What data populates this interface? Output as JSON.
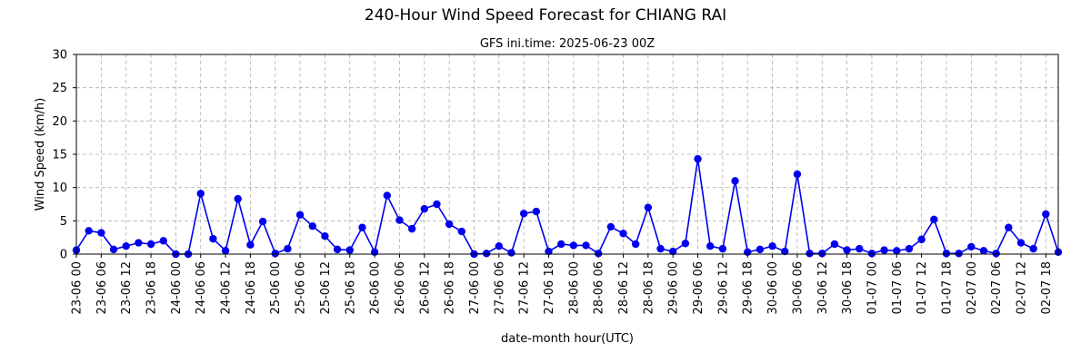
{
  "chart_data": {
    "type": "line",
    "title": "240-Hour Wind Speed Forecast for CHIANG RAI",
    "subtitle": "GFS ini.time: 2025-06-23 00Z",
    "xlabel": "date-month hour(UTC)",
    "ylabel": "Wind Speed (km/h)",
    "ylim": [
      0,
      30
    ],
    "yticks": [
      0,
      5,
      10,
      15,
      20,
      25,
      30
    ],
    "grid": true,
    "x_step_hours": 3,
    "xtick_labels": [
      "23-06 00",
      "23-06 06",
      "23-06 12",
      "23-06 18",
      "24-06 00",
      "24-06 06",
      "24-06 12",
      "24-06 18",
      "25-06 00",
      "25-06 06",
      "25-06 12",
      "25-06 18",
      "26-06 00",
      "26-06 06",
      "26-06 12",
      "26-06 18",
      "27-06 00",
      "27-06 06",
      "27-06 12",
      "27-06 18",
      "28-06 00",
      "28-06 06",
      "28-06 12",
      "28-06 18",
      "29-06 00",
      "29-06 06",
      "29-06 12",
      "29-06 18",
      "30-06 00",
      "30-06 06",
      "30-06 12",
      "30-06 18",
      "01-07 00",
      "01-07 06",
      "01-07 12",
      "01-07 18",
      "02-07 00",
      "02-07 06",
      "02-07 12",
      "02-07 18"
    ],
    "series": [
      {
        "color": "#0000ee",
        "values": [
          0.6,
          3.5,
          3.2,
          0.7,
          1.2,
          1.7,
          1.5,
          2.0,
          0.0,
          0.0,
          9.1,
          2.3,
          0.5,
          8.3,
          1.4,
          4.9,
          0.1,
          0.8,
          5.9,
          4.2,
          2.7,
          0.7,
          0.6,
          4.0,
          0.3,
          8.8,
          5.1,
          3.8,
          6.8,
          7.5,
          4.5,
          3.4,
          0.0,
          0.1,
          1.2,
          0.2,
          6.1,
          6.4,
          0.4,
          1.5,
          1.3,
          1.3,
          0.1,
          4.1,
          3.1,
          1.5,
          7.0,
          0.8,
          0.4,
          1.6,
          14.3,
          1.2,
          0.8,
          11.0,
          0.3,
          0.7,
          1.2,
          0.4,
          12.0,
          0.1,
          0.1,
          1.5,
          0.6,
          0.8,
          0.1,
          0.6,
          0.5,
          0.8,
          2.2,
          5.2,
          0.1,
          0.1,
          1.1,
          0.5,
          0.1,
          4.0,
          1.7,
          0.8,
          6.0,
          0.3
        ]
      }
    ]
  }
}
